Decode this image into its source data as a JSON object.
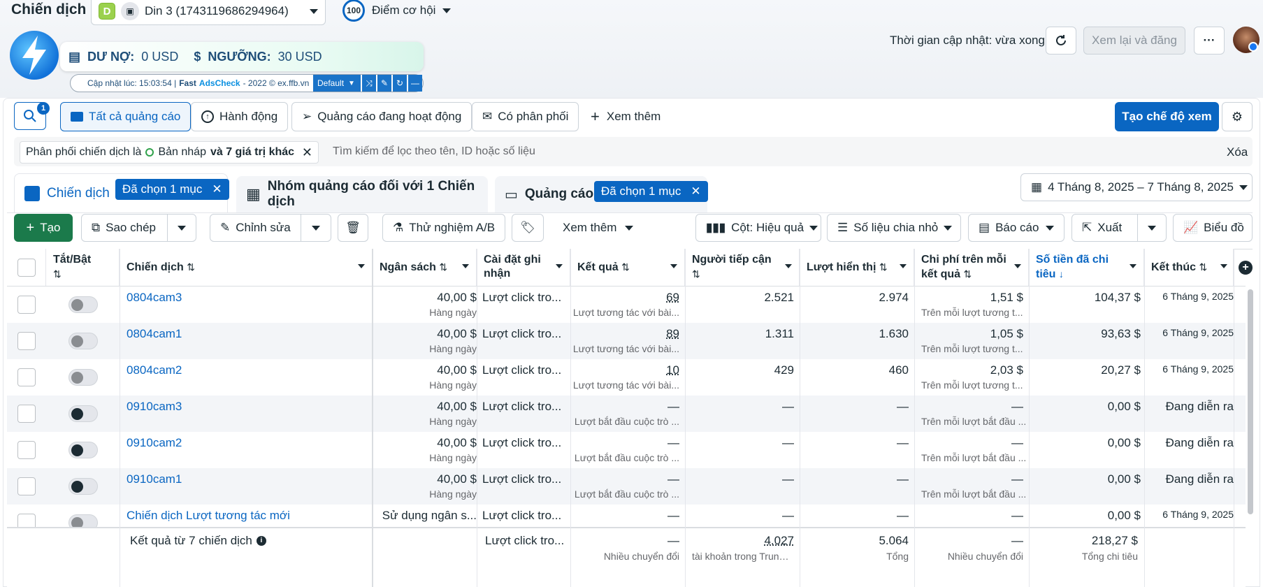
{
  "topbar": {
    "title": "Chiến dịch",
    "account_badge": "D",
    "account_name": "Din 3 (1743119686294964)",
    "score_value": "100",
    "score_label": "Điểm cơ hội",
    "update_time_label": "Thời gian cập nhật: vừa xong",
    "review_publish": "Xem lại và đăng",
    "more": "···"
  },
  "ext": {
    "debt_label": "DƯ NỢ:",
    "debt_value": "0 USD",
    "threshold_label": "NGƯỠNG:",
    "threshold_value": "30 USD",
    "updated_prefix": "Cập nhật lúc: 15:03:54 |",
    "brand_fast": "Fast",
    "brand_ads": "AdsCheck",
    "brand_suffix": "- 2022 © ex.ffb.vn",
    "profile": "Default"
  },
  "filterbar": {
    "search_badge": "1",
    "all_ads": "Tất cả quảng cáo",
    "actions": "Hành động",
    "active_ads": "Quảng cáo đang hoạt động",
    "has_delivery": "Có phân phối",
    "see_more": "Xem thêm",
    "create_view": "Tạo chế độ xem"
  },
  "filter": {
    "chip_prefix": "Phân phối chiến dịch là",
    "chip_value": "Bản nháp",
    "chip_more": "và 7 giá trị khác",
    "search_placeholder": "Tìm kiếm để lọc theo tên, ID hoặc số liệu",
    "clear": "Xóa"
  },
  "levels": {
    "campaigns": "Chiến dịch",
    "campaigns_selected": "Đã chọn 1 mục",
    "adsets": "Nhóm quảng cáo đối với 1 Chiến dịch",
    "ads": "Quảng cáo",
    "ads_selected": "Đã chọn 1 mục",
    "date_range": "4 Tháng 8, 2025 – 7 Tháng 8, 2025"
  },
  "toolbar": {
    "create": "Tạo",
    "copy": "Sao chép",
    "edit": "Chỉnh sửa",
    "ab_test": "Thử nghiệm A/B",
    "see_more": "Xem thêm",
    "columns": "Cột: Hiệu quả",
    "breakdown": "Số liệu chia nhỏ",
    "reports": "Báo cáo",
    "export": "Xuất",
    "charts": "Biểu đồ"
  },
  "table": {
    "headers": {
      "toggle": "Tắt/Bật",
      "campaign": "Chiến dịch",
      "budget": "Ngân sách",
      "attribution": "Cài đặt ghi nhận",
      "results": "Kết quả",
      "reach": "Người tiếp cận",
      "impressions": "Lượt hiển thị",
      "cost_per_result": "Chi phí trên mỗi kết quả",
      "amount_spent": "Số tiền đã chi tiêu",
      "ends": "Kết thúc"
    },
    "rows": [
      {
        "name": "0804cam3",
        "on": false,
        "budget": "40,00 $",
        "budget_sub": "Hàng ngày",
        "attribution": "Lượt click tro...",
        "result": "69",
        "result_sub": "Lượt tương tác với bài...",
        "reach": "2.521",
        "impressions": "2.974",
        "cpr": "1,51 $",
        "cpr_sub": "Trên mỗi lượt tương t...",
        "spent": "104,37 $",
        "ends": "6 Tháng 9, 2025"
      },
      {
        "name": "0804cam1",
        "on": false,
        "budget": "40,00 $",
        "budget_sub": "Hàng ngày",
        "attribution": "Lượt click tro...",
        "result": "89",
        "result_sub": "Lượt tương tác với bài...",
        "reach": "1.311",
        "impressions": "1.630",
        "cpr": "1,05 $",
        "cpr_sub": "Trên mỗi lượt tương t...",
        "spent": "93,63 $",
        "ends": "6 Tháng 9, 2025"
      },
      {
        "name": "0804cam2",
        "on": false,
        "budget": "40,00 $",
        "budget_sub": "Hàng ngày",
        "attribution": "Lượt click tro...",
        "result": "10",
        "result_sub": "Lượt tương tác với bài...",
        "reach": "429",
        "impressions": "460",
        "cpr": "2,03 $",
        "cpr_sub": "Trên mỗi lượt tương t...",
        "spent": "20,27 $",
        "ends": "6 Tháng 9, 2025"
      },
      {
        "name": "0910cam3",
        "on": true,
        "budget": "40,00 $",
        "budget_sub": "Hàng ngày",
        "attribution": "Lượt click tro...",
        "result": "—",
        "result_sub": "Lượt bắt đầu cuộc trò ...",
        "reach": "—",
        "impressions": "—",
        "cpr": "—",
        "cpr_sub": "Trên mỗi lượt bắt đầu ...",
        "spent": "0,00 $",
        "ends": "Đang diễn ra"
      },
      {
        "name": "0910cam2",
        "on": true,
        "budget": "40,00 $",
        "budget_sub": "Hàng ngày",
        "attribution": "Lượt click tro...",
        "result": "—",
        "result_sub": "Lượt bắt đầu cuộc trò ...",
        "reach": "—",
        "impressions": "—",
        "cpr": "—",
        "cpr_sub": "Trên mỗi lượt bắt đầu ...",
        "spent": "0,00 $",
        "ends": "Đang diễn ra"
      },
      {
        "name": "0910cam1",
        "on": true,
        "budget": "40,00 $",
        "budget_sub": "Hàng ngày",
        "attribution": "Lượt click tro...",
        "result": "—",
        "result_sub": "Lượt bắt đầu cuộc trò ...",
        "reach": "—",
        "impressions": "—",
        "cpr": "—",
        "cpr_sub": "Trên mỗi lượt bắt đầu ...",
        "spent": "0,00 $",
        "ends": "Đang diễn ra"
      },
      {
        "name": "Chiến dịch Lượt tương tác mới",
        "on": false,
        "budget": "Sử dụng ngân s...",
        "budget_sub": "",
        "attribution": "Lượt click tro...",
        "result": "—",
        "result_sub": "",
        "reach": "—",
        "impressions": "—",
        "cpr": "—",
        "cpr_sub": "",
        "spent": "0,00 $",
        "ends": "6 Tháng 9, 2025"
      }
    ],
    "summary": {
      "label": "Kết quả từ 7 chiến dịch",
      "attribution": "Lượt click tro...",
      "result": "—",
      "result_sub": "Nhiều chuyển đổi",
      "reach": "4.027",
      "reach_sub": "tài khoản trong Trung ...",
      "impressions": "5.064",
      "impressions_sub": "Tổng",
      "cpr": "—",
      "cpr_sub": "Nhiều chuyển đổi",
      "spent": "218,27 $",
      "spent_sub": "Tổng chi tiêu"
    }
  }
}
